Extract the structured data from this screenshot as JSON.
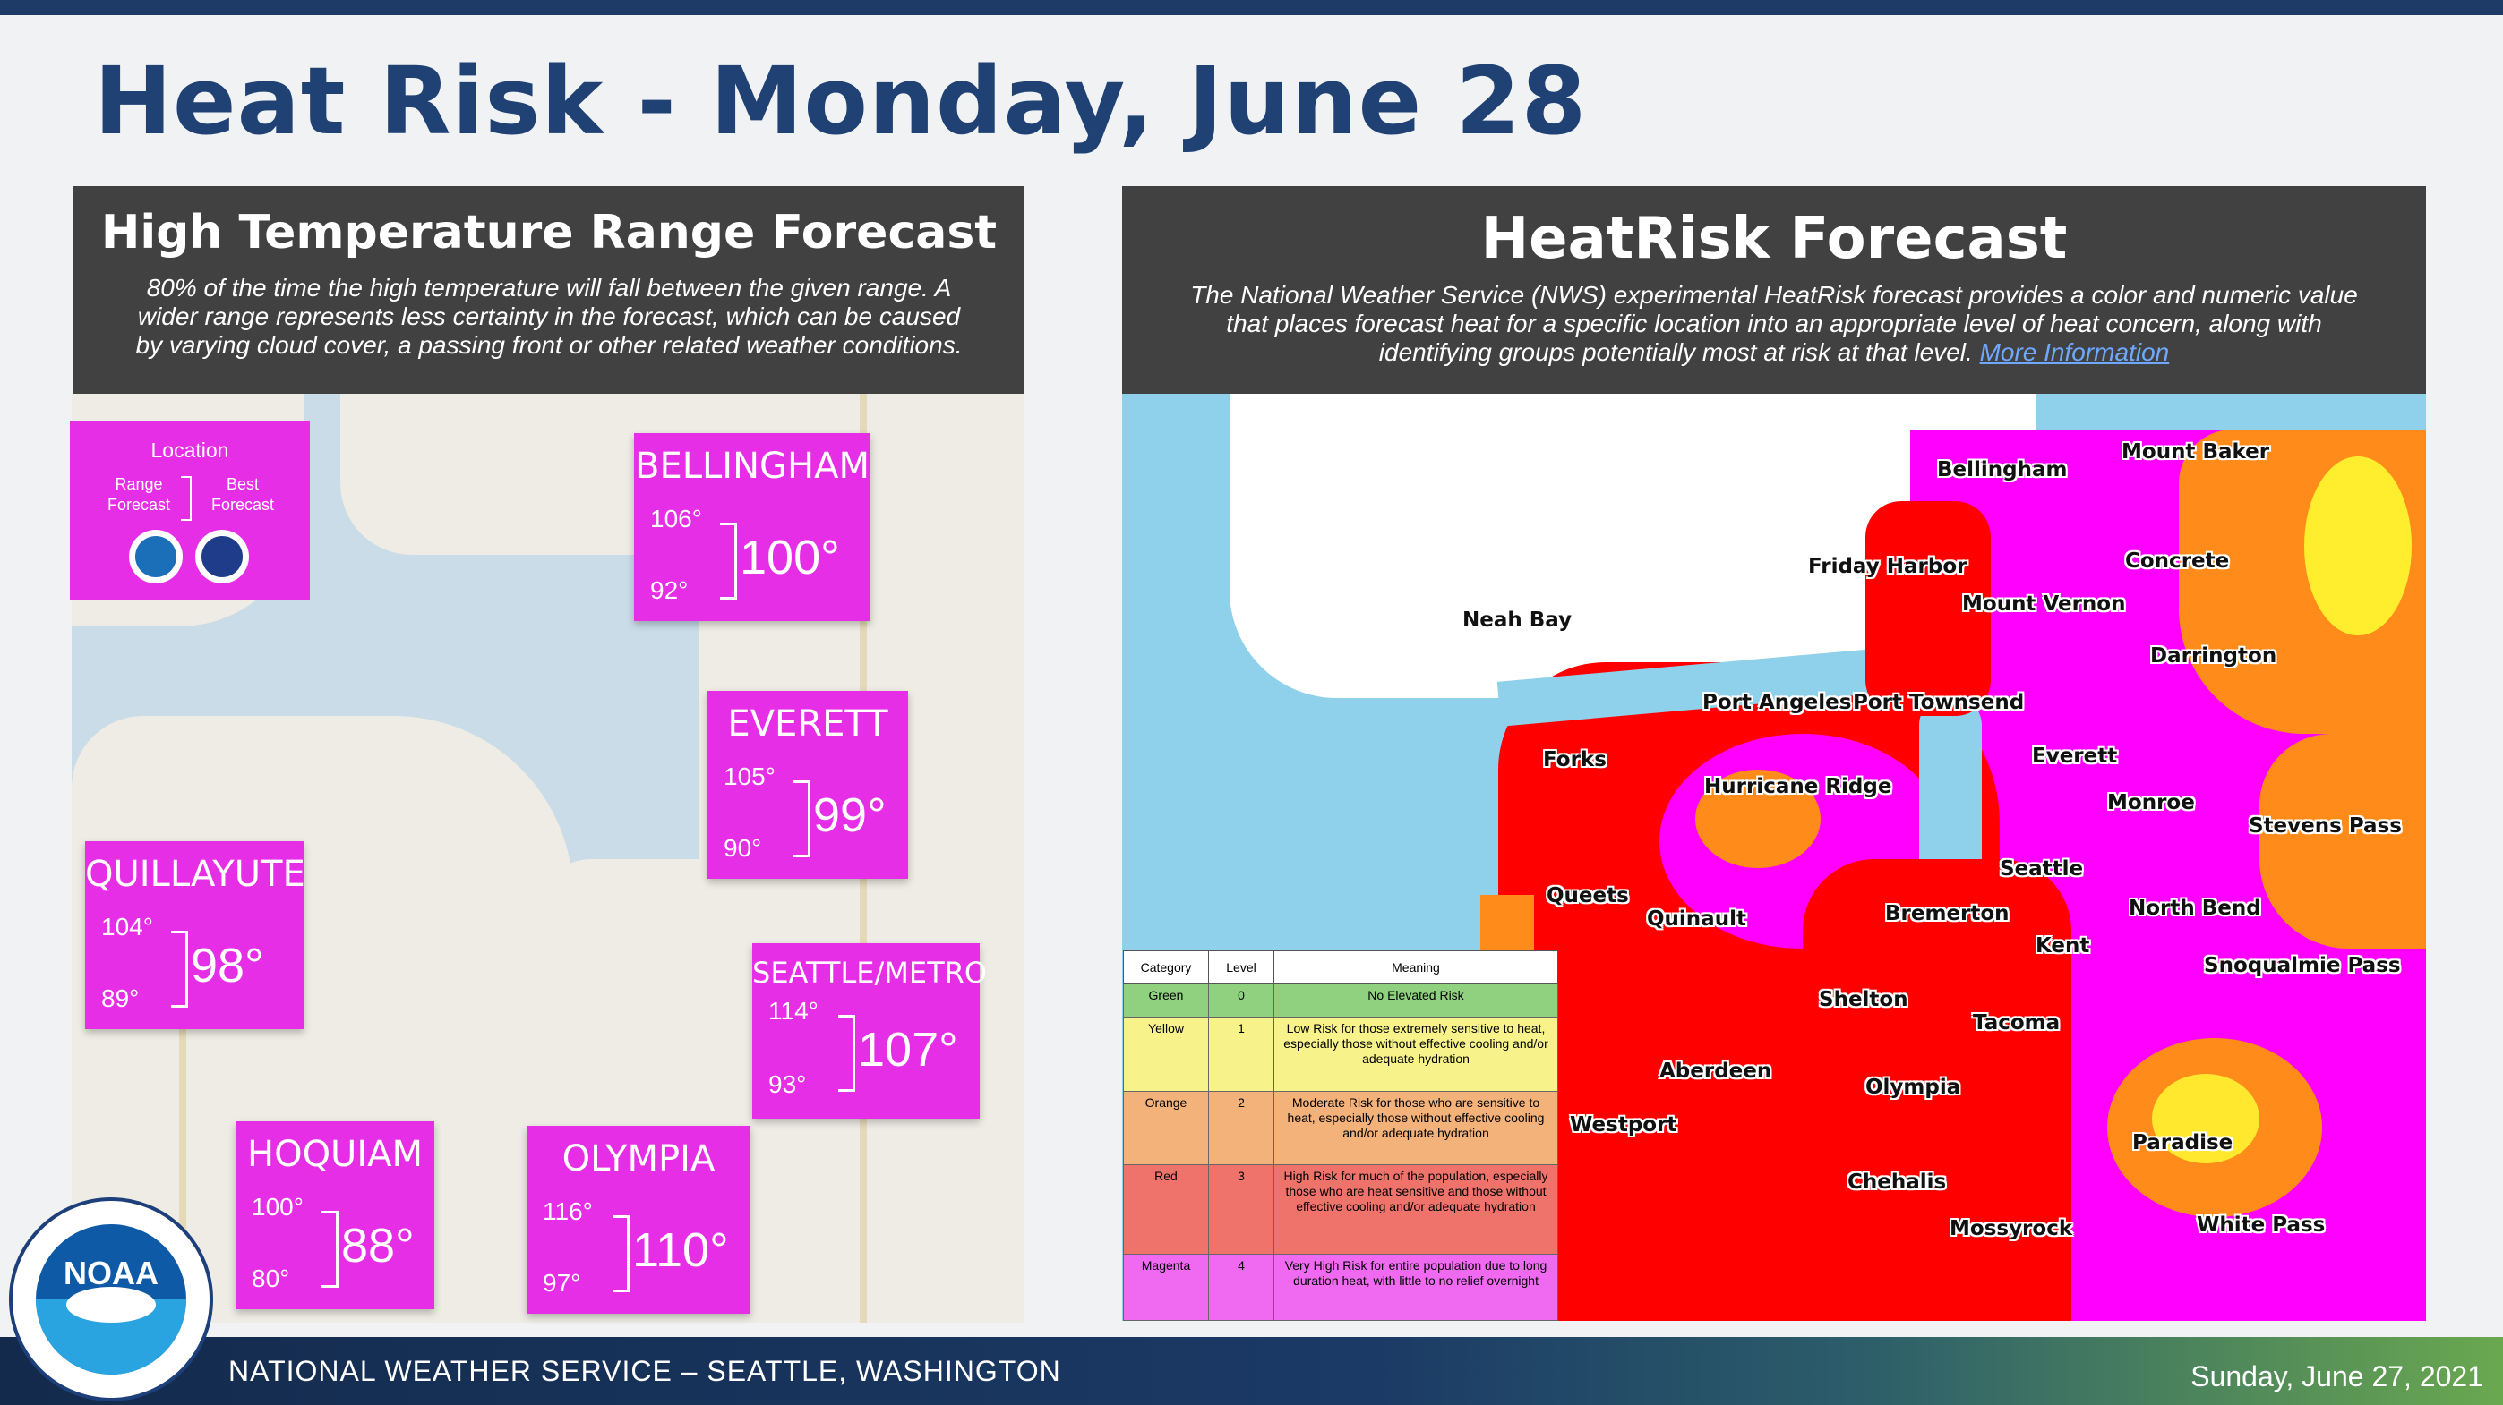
{
  "page": {
    "title": "Heat Risk - Monday, June 28"
  },
  "left_panel": {
    "title": "High Temperature Range Forecast",
    "description": "80% of the time the high temperature will fall between the given range. A wider range represents less certainty in the forecast, which can be caused by varying cloud cover, a passing front or other related weather conditions.",
    "legend": {
      "title": "Location",
      "range_label": "Range Forecast",
      "best_label": "Best Forecast"
    },
    "cities": [
      {
        "name": "BELLINGHAM",
        "high": "106°",
        "low": "92°",
        "best": "100°"
      },
      {
        "name": "EVERETT",
        "high": "105°",
        "low": "90°",
        "best": "99°"
      },
      {
        "name": "QUILLAYUTE",
        "high": "104°",
        "low": "89°",
        "best": "98°"
      },
      {
        "name": "SEATTLE/METRO",
        "high": "114°",
        "low": "93°",
        "best": "107°"
      },
      {
        "name": "HOQUIAM",
        "high": "100°",
        "low": "80°",
        "best": "88°"
      },
      {
        "name": "OLYMPIA",
        "high": "116°",
        "low": "97°",
        "best": "110°"
      }
    ]
  },
  "right_panel": {
    "title": "HeatRisk Forecast",
    "description": "The National Weather Service (NWS) experimental HeatRisk forecast provides a color and numeric value that places forecast heat for a specific location into an appropriate level of heat concern, along with identifying groups potentially most at risk at that level.",
    "link_text": "More Information",
    "map_labels": [
      "Bellingham",
      "Mount Baker",
      "Friday Harbor",
      "Concrete",
      "Mount Vernon",
      "Neah Bay",
      "Darrington",
      "Port Angeles",
      "Port Townsend",
      "Everett",
      "Forks",
      "Hurricane Ridge",
      "Monroe",
      "Stevens Pass",
      "Seattle",
      "Queets",
      "Quinault",
      "Bremerton",
      "North Bend",
      "Kent",
      "Snoqualmie Pass",
      "Shelton",
      "Tacoma",
      "Aberdeen",
      "Olympia",
      "Westport",
      "Paradise",
      "Chehalis",
      "Mossyrock",
      "White Pass"
    ],
    "colors": {
      "ocean": "#8fd0ea",
      "magenta": "#ff00ff",
      "red": "#ff0000",
      "orange": "#ff8c1a",
      "yellow": "#ffff33"
    },
    "table": {
      "headers": [
        "Category",
        "Level",
        "Meaning"
      ],
      "rows": [
        {
          "category": "Green",
          "level": "0",
          "meaning": "No Elevated Risk",
          "color": "#8fd17f"
        },
        {
          "category": "Yellow",
          "level": "1",
          "meaning": "Low Risk for those extremely sensitive to heat, especially those without effective cooling and/or adequate hydration",
          "color": "#f7f38a"
        },
        {
          "category": "Orange",
          "level": "2",
          "meaning": "Moderate Risk for those who are sensitive to heat, especially those without effective cooling and/or adequate hydration",
          "color": "#f3b27a"
        },
        {
          "category": "Red",
          "level": "3",
          "meaning": "High Risk for much of the population, especially those who are heat sensitive and those without effective cooling and/or adequate hydration",
          "color": "#f0736b"
        },
        {
          "category": "Magenta",
          "level": "4",
          "meaning": "Very High Risk for entire population due to long duration heat, with little to no relief overnight",
          "color": "#ef6af0"
        }
      ]
    }
  },
  "footer": {
    "office": "NATIONAL WEATHER SERVICE – SEATTLE, WASHINGTON",
    "date": "Sunday, June 27, 2021",
    "logo_text": "NOAA"
  }
}
